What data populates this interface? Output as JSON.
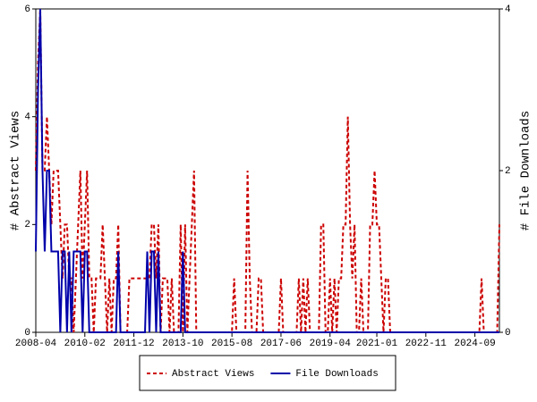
{
  "chart_data": {
    "type": "line",
    "x": [
      "2008-04",
      "2008-05",
      "2008-06",
      "2008-07",
      "2008-08",
      "2008-09",
      "2008-10",
      "2008-11",
      "2008-12",
      "2009-01",
      "2009-02",
      "2009-03",
      "2009-04",
      "2009-05",
      "2009-06",
      "2009-07",
      "2009-08",
      "2009-09",
      "2009-10",
      "2009-11",
      "2009-12",
      "2010-01",
      "2010-02",
      "2010-03",
      "2010-04",
      "2010-05",
      "2010-06",
      "2010-07",
      "2010-08",
      "2010-09",
      "2010-10",
      "2010-11",
      "2010-12",
      "2011-01",
      "2011-02",
      "2011-03",
      "2011-04",
      "2011-05",
      "2011-06",
      "2011-07",
      "2011-08",
      "2011-09",
      "2011-10",
      "2011-11",
      "2011-12",
      "2012-01",
      "2012-02",
      "2012-03",
      "2012-04",
      "2012-05",
      "2012-06",
      "2012-07",
      "2012-08",
      "2012-09",
      "2012-10",
      "2012-11",
      "2012-12",
      "2013-01",
      "2013-02",
      "2013-03",
      "2013-04",
      "2013-05",
      "2013-06",
      "2013-07",
      "2013-08",
      "2013-09",
      "2013-10",
      "2013-11",
      "2013-12",
      "2014-01",
      "2014-02",
      "2014-03",
      "2014-04",
      "2014-05",
      "2014-06",
      "2014-07",
      "2014-08",
      "2014-09",
      "2014-10",
      "2014-11",
      "2014-12",
      "2015-01",
      "2015-02",
      "2015-03",
      "2015-04",
      "2015-05",
      "2015-06",
      "2015-07",
      "2015-08",
      "2015-09",
      "2015-10",
      "2015-11",
      "2015-12",
      "2016-01",
      "2016-02",
      "2016-03",
      "2016-04",
      "2016-05",
      "2016-06",
      "2016-07",
      "2016-08",
      "2016-09",
      "2016-10",
      "2016-11",
      "2016-12",
      "2017-01",
      "2017-02",
      "2017-03",
      "2017-04",
      "2017-05",
      "2017-06",
      "2017-07",
      "2017-08",
      "2017-09",
      "2017-10",
      "2017-11",
      "2017-12",
      "2018-01",
      "2018-02",
      "2018-03",
      "2018-04",
      "2018-05",
      "2018-06",
      "2018-07",
      "2018-08",
      "2018-09",
      "2018-10",
      "2018-11",
      "2018-12",
      "2019-01",
      "2019-02",
      "2019-03",
      "2019-04",
      "2019-05",
      "2019-06",
      "2019-07",
      "2019-08",
      "2019-09",
      "2019-10",
      "2019-11",
      "2019-12",
      "2020-01",
      "2020-02",
      "2020-03",
      "2020-04",
      "2020-05",
      "2020-06",
      "2020-07",
      "2020-08",
      "2020-09",
      "2020-10",
      "2020-11",
      "2020-12",
      "2021-01",
      "2021-02",
      "2021-03",
      "2021-04",
      "2021-05",
      "2021-06",
      "2021-07",
      "2021-08",
      "2021-09",
      "2021-10",
      "2021-11",
      "2021-12",
      "2022-01",
      "2022-02",
      "2022-03",
      "2022-04",
      "2022-05",
      "2022-06",
      "2022-07",
      "2022-08",
      "2022-09",
      "2022-10",
      "2022-11",
      "2022-12",
      "2023-01",
      "2023-02",
      "2023-03",
      "2023-04",
      "2023-05",
      "2023-06",
      "2023-07",
      "2023-08",
      "2023-09",
      "2023-10",
      "2023-11",
      "2023-12",
      "2024-01",
      "2024-02",
      "2024-03",
      "2024-04",
      "2024-05",
      "2024-06",
      "2024-07",
      "2024-08",
      "2024-09",
      "2024-10",
      "2024-11",
      "2024-12",
      "2025-01",
      "2025-02",
      "2025-03",
      "2025-04",
      "2025-05",
      "2025-06",
      "2025-07",
      "2025-08"
    ],
    "series": [
      {
        "name": "Abstract Views",
        "color": "#cc0000",
        "dash": true,
        "axis": "y",
        "values": [
          3,
          5,
          6,
          3,
          3,
          4,
          3,
          2,
          3,
          3,
          3,
          2,
          1,
          2,
          2,
          1,
          1,
          0,
          1,
          2,
          3,
          1,
          2,
          3,
          1,
          1,
          0,
          1,
          1,
          1,
          2,
          1,
          0,
          1,
          0,
          1,
          1,
          2,
          0,
          0,
          0,
          0,
          1,
          1,
          1,
          1,
          1,
          1,
          1,
          1,
          1,
          1,
          2,
          2,
          1,
          2,
          0,
          1,
          1,
          1,
          0,
          1,
          0,
          0,
          0,
          2,
          0,
          2,
          0,
          1,
          2,
          3,
          0,
          0,
          0,
          0,
          0,
          0,
          0,
          0,
          0,
          0,
          0,
          0,
          0,
          0,
          0,
          0,
          0,
          1,
          0,
          0,
          0,
          0,
          0,
          3,
          1,
          0,
          0,
          0,
          1,
          1,
          0,
          0,
          0,
          0,
          0,
          0,
          0,
          0,
          1,
          0,
          0,
          0,
          0,
          0,
          0,
          0,
          1,
          0,
          1,
          0,
          1,
          0,
          0,
          0,
          0,
          0,
          2,
          2,
          0,
          0,
          1,
          0,
          1,
          0,
          1,
          1,
          2,
          2,
          4,
          2,
          1,
          2,
          0,
          0,
          1,
          0,
          0,
          0,
          2,
          2,
          3,
          2,
          2,
          1,
          0,
          1,
          1,
          0,
          0,
          0,
          0,
          0,
          0,
          0,
          0,
          0,
          0,
          0,
          0,
          0,
          0,
          0,
          0,
          0,
          0,
          0,
          0,
          0,
          0,
          0,
          0,
          0,
          0,
          0,
          0,
          0,
          0,
          0,
          0,
          0,
          0,
          0,
          0,
          0,
          0,
          0,
          0,
          0,
          1,
          0,
          0,
          0,
          0,
          0,
          0,
          0,
          2
        ]
      },
      {
        "name": "File Downloads",
        "color": "#0000aa",
        "dash": false,
        "axis": "y2",
        "values": [
          1,
          3,
          4,
          2,
          1,
          2,
          2,
          1,
          1,
          1,
          1,
          0,
          1,
          1,
          0,
          1,
          0,
          1,
          1,
          1,
          1,
          0,
          1,
          1,
          0,
          0,
          0,
          0,
          0,
          0,
          0,
          0,
          0,
          0,
          0,
          0,
          0,
          1,
          0,
          0,
          0,
          0,
          0,
          0,
          0,
          0,
          0,
          0,
          0,
          0,
          1,
          0,
          1,
          1,
          0,
          1,
          0,
          0,
          0,
          0,
          0,
          0,
          0,
          0,
          0,
          0,
          1,
          0,
          0,
          0,
          0,
          0,
          0,
          0,
          0,
          0,
          0,
          0,
          0,
          0,
          0,
          0,
          0,
          0,
          0,
          0,
          0,
          0,
          0,
          0,
          0,
          0,
          0,
          0,
          0,
          0,
          0,
          0,
          0,
          0,
          0,
          0,
          0,
          0,
          0,
          0,
          0,
          0,
          0,
          0,
          0,
          0,
          0,
          0,
          0,
          0,
          0,
          0,
          0,
          0,
          0,
          0,
          0,
          0,
          0,
          0,
          0,
          0,
          0,
          0,
          0,
          0,
          0,
          0,
          0,
          0,
          0,
          0,
          0,
          0,
          0,
          0,
          0,
          0,
          0,
          0,
          0,
          0,
          0,
          0,
          0,
          0,
          0,
          0,
          0,
          0,
          0,
          0,
          0,
          0,
          0,
          0,
          0,
          0,
          0,
          0,
          0,
          0,
          0,
          0,
          0,
          0,
          0,
          0,
          0,
          0,
          0,
          0,
          0,
          0,
          0,
          0,
          0,
          0,
          0,
          0,
          0,
          0,
          0,
          0,
          0,
          0,
          0,
          0,
          0,
          0,
          0,
          0,
          0,
          0,
          0,
          0,
          0,
          0,
          0,
          0,
          0,
          0,
          0
        ]
      }
    ],
    "xlim": [
      "2008-04",
      "2025-08"
    ],
    "xticks": [
      "2008-04",
      "2010-02",
      "2011-12",
      "2013-10",
      "2015-08",
      "2017-06",
      "2019-04",
      "2021-01",
      "2022-11",
      "2024-09"
    ],
    "ylabel": "# Abstract Views",
    "ylim": [
      0,
      6
    ],
    "yticks": [
      0,
      2,
      4,
      6
    ],
    "y2label": "# File Downloads",
    "y2lim": [
      0,
      4
    ],
    "y2ticks": [
      0,
      2,
      4
    ],
    "legend": "bottom"
  }
}
